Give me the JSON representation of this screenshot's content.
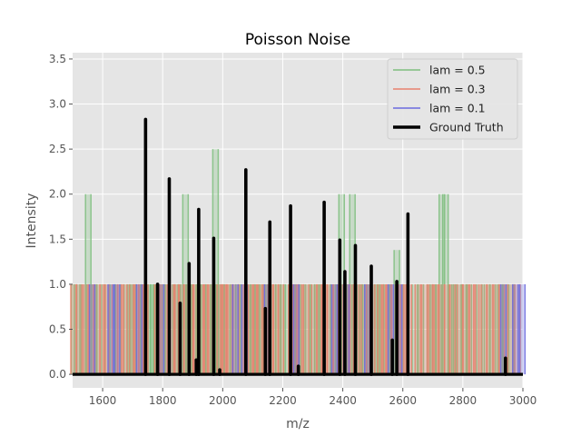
{
  "chart_data": {
    "type": "bar",
    "title": "Poisson Noise",
    "xlabel": "m/z",
    "ylabel": "Intensity",
    "xlim": [
      1500,
      3000
    ],
    "ylim": [
      -0.15,
      3.57
    ],
    "xticks": [
      1600,
      1800,
      2000,
      2200,
      2400,
      2600,
      2800,
      3000
    ],
    "yticks": [
      0.0,
      0.5,
      1.0,
      1.5,
      2.0,
      2.5,
      3.0,
      3.5
    ],
    "xtick_labels": [
      "1600",
      "1800",
      "2000",
      "2200",
      "2400",
      "2600",
      "2800",
      "3000"
    ],
    "ytick_labels": [
      "0.0",
      "0.5",
      "1.0",
      "1.5",
      "2.0",
      "2.5",
      "3.0",
      "3.5"
    ],
    "grid": true,
    "legend_position": "top-right",
    "style": "ggplot",
    "colors": {
      "plot_bg": "#e5e5e5",
      "grid": "#ffffff"
    },
    "series": [
      {
        "name": "lam = 0.5",
        "color": "#7fbf7f",
        "kind": "noise",
        "x": [
          1505,
          1515,
          1537,
          1552,
          1572,
          1588,
          1615,
          1632,
          1652,
          1680,
          1692,
          1702,
          1720,
          1735,
          1752,
          1760,
          1768,
          1778,
          1790,
          1800,
          1815,
          1842,
          1850,
          1868,
          1876,
          1888,
          1905,
          1920,
          1935,
          1952,
          1968,
          1976,
          1985,
          1995,
          2015,
          2035,
          2052,
          2065,
          2085,
          2100,
          2115,
          2128,
          2140,
          2152,
          2168,
          2185,
          2200,
          2212,
          2235,
          2250,
          2262,
          2285,
          2298,
          2315,
          2328,
          2350,
          2368,
          2384,
          2396,
          2405,
          2422,
          2432,
          2456,
          2465,
          2475,
          2505,
          2515,
          2528,
          2545,
          2566,
          2580,
          2610,
          2640,
          2660,
          2690,
          2700,
          2720,
          2730,
          2742,
          2760,
          2772,
          2785,
          2805,
          2820,
          2855,
          2880,
          2900,
          2925,
          2940,
          2962
        ],
        "y": [
          1,
          1,
          1,
          2,
          1,
          1,
          1,
          1,
          1,
          1,
          1,
          1,
          1,
          1,
          1,
          1,
          1,
          1,
          1,
          1,
          1,
          1,
          1,
          1,
          2,
          1,
          1,
          1,
          1,
          1,
          1,
          2.5,
          1,
          1,
          1,
          1,
          1,
          1,
          1,
          1,
          1,
          1,
          1,
          1,
          1,
          1,
          1,
          1,
          1,
          1,
          1,
          1,
          1,
          1,
          1,
          1,
          1,
          1,
          2,
          1,
          1,
          2,
          1,
          1,
          1,
          1,
          1,
          1,
          1,
          1,
          1.38,
          1,
          1,
          1,
          1,
          1,
          1,
          2,
          2,
          1,
          1,
          1,
          1,
          1,
          1,
          1,
          1,
          1,
          1,
          1
        ]
      },
      {
        "name": "lam = 0.3",
        "color": "#e8826e",
        "kind": "noise",
        "x": [
          1503,
          1522,
          1545,
          1560,
          1582,
          1600,
          1612,
          1640,
          1660,
          1672,
          1698,
          1712,
          1728,
          1742,
          1782,
          1806,
          1832,
          1846,
          1862,
          1880,
          1895,
          1910,
          1930,
          1944,
          1958,
          1990,
          2002,
          2008,
          2022,
          2044,
          2060,
          2094,
          2108,
          2122,
          2145,
          2160,
          2176,
          2194,
          2228,
          2242,
          2255,
          2278,
          2305,
          2322,
          2338,
          2358,
          2378,
          2392,
          2415,
          2428,
          2445,
          2470,
          2488,
          2498,
          2525,
          2538,
          2552,
          2572,
          2595,
          2602,
          2620,
          2650,
          2672,
          2695,
          2708,
          2730,
          2748,
          2765,
          2790,
          2810,
          2832,
          2845,
          2870,
          2890,
          2912,
          2930,
          2958,
          2982
        ],
        "y": [
          1,
          1,
          1,
          1,
          1,
          1,
          1,
          1,
          1,
          1,
          1,
          1,
          1,
          1,
          1,
          1,
          1,
          1,
          1,
          1,
          1,
          1,
          1,
          1,
          1,
          1,
          1,
          1,
          1,
          1,
          1,
          1,
          1,
          1,
          1,
          1,
          1,
          1,
          1,
          1,
          1,
          1,
          1,
          1,
          1,
          1,
          1,
          1,
          1,
          1,
          1,
          1,
          1,
          1,
          1,
          1,
          1,
          1,
          1,
          1,
          1,
          1,
          1,
          1,
          1,
          1,
          1,
          1,
          1,
          1,
          1,
          1,
          1,
          1,
          1,
          1,
          1,
          1
        ]
      },
      {
        "name": "lam = 0.1",
        "color": "#6b6bdf",
        "kind": "noise",
        "x": [
          1565,
          1627,
          1648,
          1722,
          1795,
          2042,
          2072,
          2148,
          2245,
          2372,
          2412,
          2482,
          2560,
          2588,
          2935,
          2975,
          2998
        ],
        "y": [
          1,
          1,
          1,
          1,
          1,
          1,
          1,
          1,
          1,
          1,
          1,
          1,
          1,
          1,
          1,
          1,
          1
        ]
      },
      {
        "name": "Ground Truth",
        "color": "#000000",
        "kind": "truth",
        "x": [
          1743,
          1783,
          1822,
          1858,
          1888,
          1912,
          1920,
          1970,
          1990,
          2077,
          2142,
          2157,
          2226,
          2252,
          2338,
          2390,
          2407,
          2442,
          2495,
          2565,
          2580,
          2617,
          2942
        ],
        "y": [
          2.83,
          1.0,
          2.17,
          0.79,
          1.23,
          0.16,
          1.83,
          1.51,
          0.05,
          2.27,
          0.73,
          1.69,
          1.87,
          0.09,
          1.91,
          1.49,
          1.14,
          1.43,
          1.2,
          0.38,
          1.03,
          1.78,
          0.18
        ]
      }
    ]
  }
}
